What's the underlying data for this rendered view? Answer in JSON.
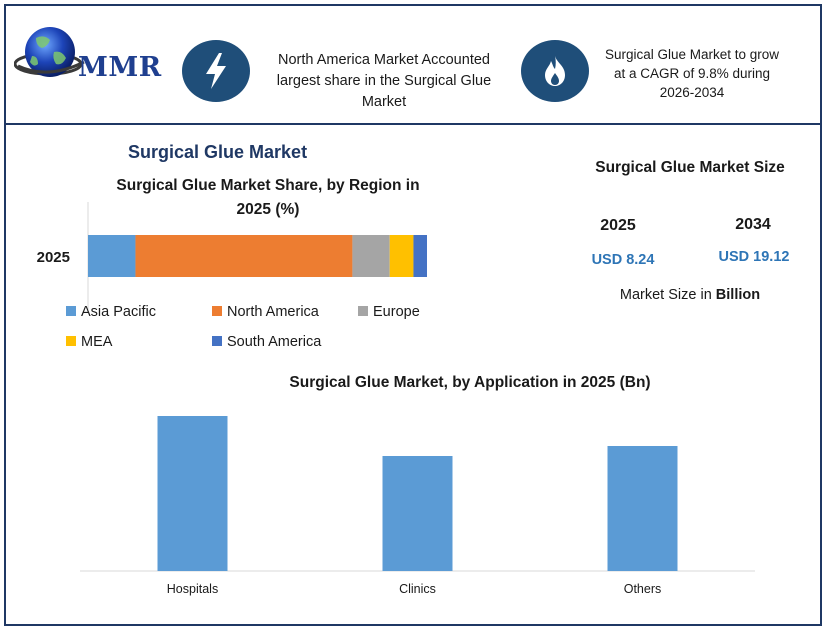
{
  "header": {
    "logo_text": "MMR",
    "left_icon": "lightning-bolt-icon",
    "left_text": "North America Market Accounted largest share in the Surgical Glue Market",
    "right_icon": "flame-icon",
    "right_text": "Surgical Glue Market to grow at a CAGR of 9.8% during 2026-2034"
  },
  "market_title": "Surgical Glue Market",
  "market_size": {
    "title": "Surgical Glue Market Size",
    "year_a": "2025",
    "year_b": "2034",
    "value_a": "USD 8.24",
    "value_b": "USD 19.12",
    "note_prefix": "Market Size in",
    "note_bold": "Billion"
  },
  "colors": {
    "frame": "#1f3864",
    "asia_pacific": "#5b9bd5",
    "north_america": "#ed7d31",
    "europe": "#a5a5a5",
    "mea": "#ffc000",
    "south_america": "#4472c4",
    "application_bar": "#5b9bd5",
    "usd_text": "#2e75b6"
  },
  "chart_data": [
    {
      "type": "bar",
      "orientation": "horizontal-stacked",
      "title": "Surgical Glue Market Share, by Region in 2025 (%)",
      "categories": [
        "2025"
      ],
      "series": [
        {
          "name": "Asia Pacific",
          "values": [
            14
          ]
        },
        {
          "name": "North America",
          "values": [
            64
          ]
        },
        {
          "name": "Europe",
          "values": [
            11
          ]
        },
        {
          "name": "MEA",
          "values": [
            7
          ]
        },
        {
          "name": "South America",
          "values": [
            4
          ]
        }
      ],
      "xlim": [
        0,
        100
      ],
      "legend": "bottom",
      "grid": false
    },
    {
      "type": "bar",
      "title": "Surgical Glue Market, by Application in 2025 (Bn)",
      "categories": [
        "Hospitals",
        "Clinics",
        "Others"
      ],
      "values": [
        3.1,
        2.3,
        2.5
      ],
      "ylim": [
        0,
        3.1
      ],
      "grid": false
    }
  ]
}
